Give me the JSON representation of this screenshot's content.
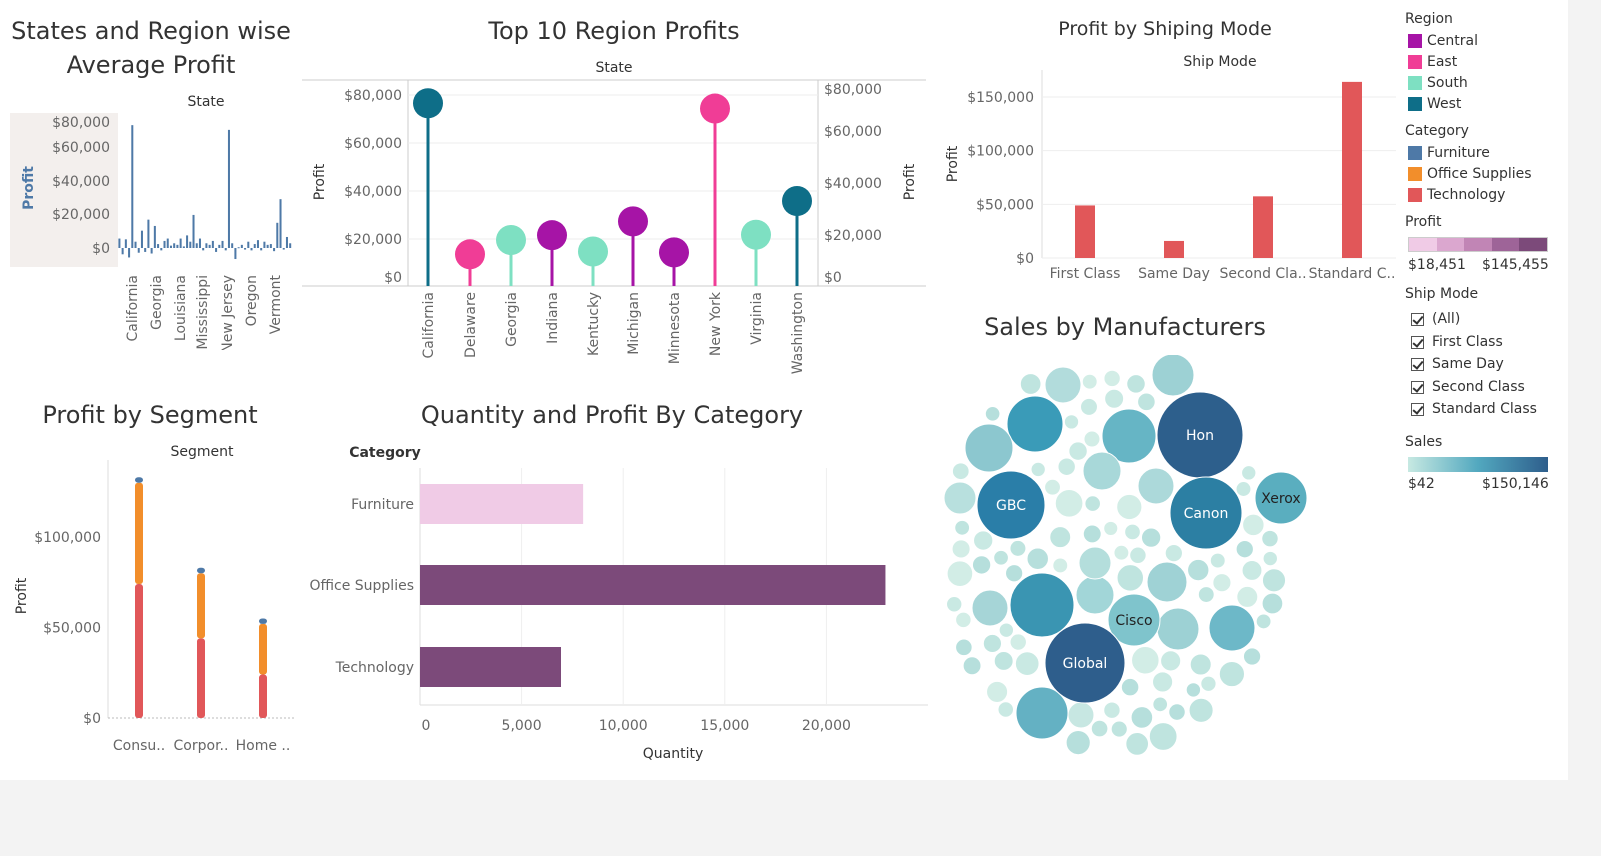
{
  "sheet1": {
    "title_lines": [
      "States and Region wise",
      "Average Profit"
    ],
    "header": "State",
    "ylabel": "Profit",
    "yticks": [
      "$80,000",
      "$60,000",
      "$40,000",
      "$20,000",
      "$0"
    ],
    "xticks": [
      "California",
      "Georgia",
      "Louisiana",
      "Mississippi",
      "New Jersey",
      "Oregon",
      "Vermont"
    ]
  },
  "sheet2": {
    "title": "Top 10 Region Profits",
    "header": "State",
    "ylabel": "Profit",
    "yticks_left": [
      "$80,000",
      "$60,000",
      "$40,000",
      "$20,000",
      "$0"
    ],
    "yticks_right": [
      "$80,000",
      "$60,000",
      "$40,000",
      "$20,000",
      "$0"
    ]
  },
  "sheet3": {
    "title": "Profit by Shiping Mode",
    "header": "Ship Mode",
    "ylabel": "Profit",
    "yticks": [
      "$150,000",
      "$100,000",
      "$50,000",
      "$0"
    ]
  },
  "sheet4": {
    "title": "Profit by Segment",
    "header": "Segment",
    "ylabel": "Profit",
    "yticks": [
      "$100,000",
      "$50,000",
      "$0"
    ],
    "xticks": [
      "Consu..",
      "Corpor..",
      "Home .."
    ]
  },
  "sheet5": {
    "title": "Quantity and Profit By Category",
    "header": "Category",
    "xlabel": "Quantity",
    "xticks": [
      "0",
      "5,000",
      "10,000",
      "15,000",
      "20,000"
    ]
  },
  "sheet6": {
    "title": "Sales by Manufacturers"
  },
  "legend": {
    "region_title": "Region",
    "regions": [
      {
        "label": "Central",
        "color": "#a614a6"
      },
      {
        "label": "East",
        "color": "#f03d96"
      },
      {
        "label": "South",
        "color": "#7ee0c2"
      },
      {
        "label": "West",
        "color": "#0e6e88"
      }
    ],
    "category_title": "Category",
    "categories": [
      {
        "label": "Furniture",
        "color": "#4e79a7"
      },
      {
        "label": "Office Supplies",
        "color": "#f28e2b"
      },
      {
        "label": "Technology",
        "color": "#e15759"
      }
    ],
    "profit_title": "Profit",
    "profit_min": "$18,451",
    "profit_max": "$145,455",
    "profit_colors": [
      "#f0cbe6",
      "#dba7cf",
      "#c185b5",
      "#9e6498",
      "#7c4a7a"
    ],
    "shipmode_title": "Ship Mode",
    "shipmodes": [
      "(All)",
      "First Class",
      "Same Day",
      "Second Class",
      "Standard Class"
    ],
    "sales_title": "Sales",
    "sales_min": "$42",
    "sales_max": "$150,146"
  },
  "chart_data": [
    {
      "type": "bar",
      "name": "States and Region wise Average Profit",
      "note": "one bar per state",
      "values": [
        6000,
        -4000,
        5500,
        -6000,
        78000,
        4000,
        -3000,
        11000,
        -2500,
        18000,
        -3500,
        14000,
        2500,
        -1500,
        4500,
        6000,
        1500,
        3000,
        2000,
        6000,
        1000,
        8000,
        4000,
        21000,
        3000,
        6000,
        -1500,
        3000,
        2000,
        4500,
        -2500,
        2000,
        4500,
        -1500,
        75000,
        3000,
        -7000,
        500,
        2000,
        -1000,
        4000,
        -1500,
        2500,
        5000,
        -1500,
        4000,
        2000,
        2500,
        -2000,
        16000,
        31000,
        -1000,
        7000,
        3000
      ],
      "ylim": [
        -8000,
        82000
      ]
    },
    {
      "type": "scatter",
      "name": "Top 10 Region Profits",
      "categories": [
        "California",
        "Delaware",
        "Georgia",
        "Indiana",
        "Kentucky",
        "Michigan",
        "Minnesota",
        "New York",
        "Virginia",
        "Washington"
      ],
      "values": [
        76381,
        9977,
        16250,
        18383,
        11200,
        24463,
        10823,
        74039,
        18598,
        33403
      ],
      "regions": [
        "West",
        "East",
        "South",
        "Central",
        "South",
        "Central",
        "Central",
        "East",
        "South",
        "West"
      ],
      "ylim": [
        0,
        80000
      ]
    },
    {
      "type": "bar",
      "name": "Profit by Shiping Mode",
      "categories": [
        "First Class",
        "Same Day",
        "Second Cla..",
        "Standard C.."
      ],
      "values": [
        48970,
        15891,
        57447,
        164089
      ],
      "ylim": [
        0,
        160000
      ],
      "color": "#e15759"
    },
    {
      "type": "bar",
      "name": "Profit by Segment",
      "categories": [
        "Consu..",
        "Corpor..",
        "Home .."
      ],
      "series": [
        {
          "name": "Technology",
          "values": [
            74000,
            44000,
            24000
          ]
        },
        {
          "name": "Office Supplies",
          "values": [
            56000,
            36000,
            28000
          ]
        },
        {
          "name": "Furniture",
          "values": [
            3000,
            3000,
            3000
          ]
        }
      ],
      "ylim": [
        0,
        135000
      ]
    },
    {
      "type": "bar",
      "name": "Quantity and Profit By Category",
      "categories": [
        "Furniture",
        "Office Supplies",
        "Technology"
      ],
      "values": [
        8028,
        22906,
        6939
      ],
      "profit": [
        18451,
        122491,
        145455
      ],
      "xlim": [
        0,
        25000
      ]
    },
    {
      "type": "bubble",
      "name": "Sales by Manufacturers",
      "labels": [
        "Hon",
        "Xerox",
        "GBC",
        "Canon",
        "Cisco",
        "Global"
      ],
      "values": [
        150146,
        55000,
        90000,
        100000,
        60000,
        140000
      ]
    }
  ]
}
